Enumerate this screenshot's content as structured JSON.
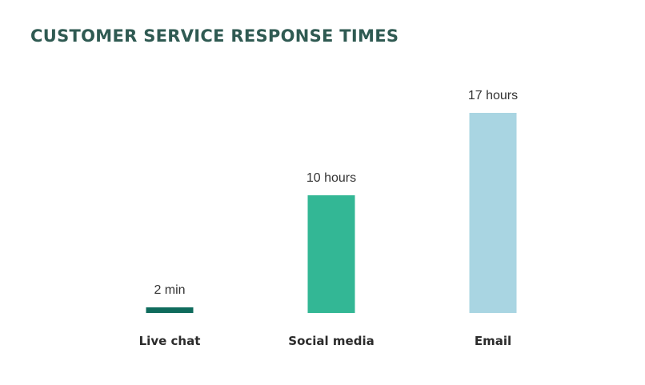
{
  "chart_data": {
    "type": "bar",
    "title": "CUSTOMER SERVICE RESPONSE TIMES",
    "categories": [
      "Live chat",
      "Social media",
      "Email"
    ],
    "values": [
      0.0333,
      10,
      17
    ],
    "unit": "hours",
    "data_labels": [
      "2 min",
      "10 hours",
      "17 hours"
    ],
    "colors": [
      "#0f6b5c",
      "#33b795",
      "#a9d5e2"
    ],
    "ylim": [
      0,
      17
    ],
    "grid": false,
    "legend": "none"
  }
}
